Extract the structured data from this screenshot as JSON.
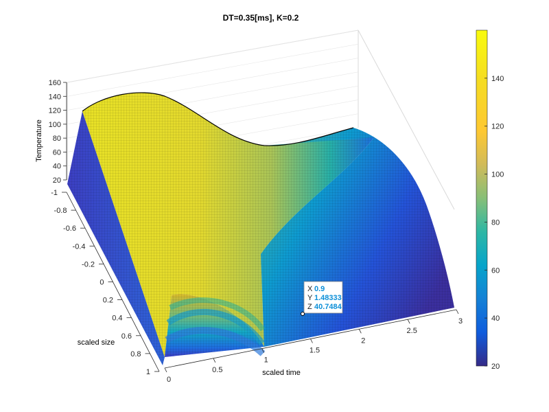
{
  "chart_data": {
    "type": "surface",
    "title": "DT=0.35[ms], K=0.2",
    "xlabel": "scaled time",
    "ylabel": "scaled size",
    "zlabel": "Temperature",
    "xlim": [
      0,
      3
    ],
    "ylim": [
      -1,
      1
    ],
    "zlim": [
      20,
      160
    ],
    "x_ticks": [
      "0",
      "0.5",
      "1",
      "1.5",
      "2",
      "2.5",
      "3"
    ],
    "y_ticks": [
      "-1",
      "-0.8",
      "-0.6",
      "-0.4",
      "-0.2",
      "0",
      "0.2",
      "0.4",
      "0.6",
      "0.8",
      "1"
    ],
    "z_ticks": [
      "20",
      "40",
      "60",
      "80",
      "100",
      "120",
      "140",
      "160"
    ],
    "colorbar": {
      "limits": [
        20,
        160
      ],
      "ticks": [
        "20",
        "40",
        "60",
        "80",
        "100",
        "120",
        "140"
      ],
      "colormap": "parula"
    },
    "surface_samples": [
      {
        "x": 0,
        "y": -1,
        "z": 20
      },
      {
        "x": 0.05,
        "y": -1,
        "z": 110
      },
      {
        "x": 0.25,
        "y": -1,
        "z": 150
      },
      {
        "x": 0.7,
        "y": -1,
        "z": 140
      },
      {
        "x": 1.0,
        "y": -1,
        "z": 125
      },
      {
        "x": 1.5,
        "y": -1,
        "z": 90
      },
      {
        "x": 3.0,
        "y": -1,
        "z": 28
      },
      {
        "x": 0.5,
        "y": 0,
        "z": 130
      },
      {
        "x": 1.0,
        "y": 0,
        "z": 110
      },
      {
        "x": 0.5,
        "y": 1,
        "z": 65
      },
      {
        "x": 1.0,
        "y": 1,
        "z": 20
      },
      {
        "x": 3.0,
        "y": 1,
        "z": 22
      }
    ],
    "grid": true,
    "colorbar_position": "right",
    "datatip": {
      "x": "0.9",
      "y": "1.48333",
      "z": "40.7484"
    }
  },
  "datatip": {
    "x_key": "X",
    "x_val": "0.9",
    "y_key": "Y",
    "y_val": "1.48333",
    "z_key": "Z",
    "z_val": "40.7484"
  }
}
